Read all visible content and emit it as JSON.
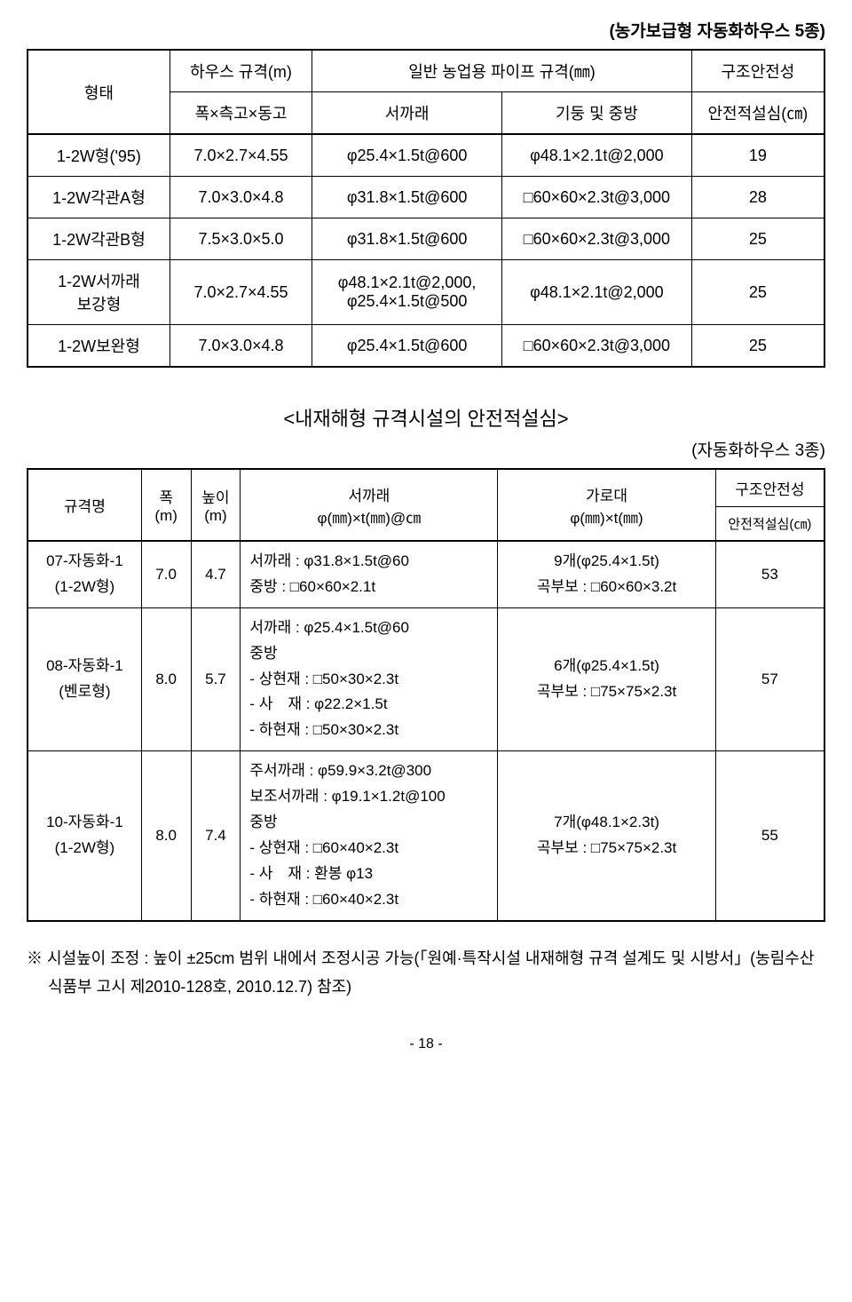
{
  "top_caption": "(농가보급형 자동화하우스 5종)",
  "table1": {
    "headers": {
      "type": "형태",
      "size_main": "하우스 규격(m)",
      "size_sub": "폭×측고×동고",
      "pipe_main": "일반 농업용 파이프 규격(㎜)",
      "pipe_sub1": "서까래",
      "pipe_sub2": "기둥 및 중방",
      "safety_main": "구조안전성",
      "safety_sub": "안전적설심(㎝)"
    },
    "rows": [
      {
        "type": "1-2W형('95)",
        "size": "7.0×2.7×4.55",
        "rafter": "φ25.4×1.5t@600",
        "col": "φ48.1×2.1t@2,000",
        "safety": "19"
      },
      {
        "type": "1-2W각관A형",
        "size": "7.0×3.0×4.8",
        "rafter": "φ31.8×1.5t@600",
        "col": "□60×60×2.3t@3,000",
        "safety": "28"
      },
      {
        "type": "1-2W각관B형",
        "size": "7.5×3.0×5.0",
        "rafter": "φ31.8×1.5t@600",
        "col": "□60×60×2.3t@3,000",
        "safety": "25"
      },
      {
        "type": "1-2W서까래\n보강형",
        "size": "7.0×2.7×4.55",
        "rafter": "φ48.1×2.1t@2,000,\nφ25.4×1.5t@500",
        "col": "φ48.1×2.1t@2,000",
        "safety": "25"
      },
      {
        "type": "1-2W보완형",
        "size": "7.0×3.0×4.8",
        "rafter": "φ25.4×1.5t@600",
        "col": "□60×60×2.3t@3,000",
        "safety": "25"
      }
    ]
  },
  "subtitle": "<내재해형 규격시설의 안전적설심>",
  "subtitle_right": "(자동화하우스 3종)",
  "table2": {
    "headers": {
      "name": "규격명",
      "width": "폭\n(m)",
      "height": "높이\n(m)",
      "rafter": "서까래\nφ(㎜)×t(㎜)@㎝",
      "cross": "가로대\nφ(㎜)×t(㎜)",
      "safety_main": "구조안전성",
      "safety_sub": "안전적설심(㎝)"
    },
    "rows": [
      {
        "name": "07-자동화-1\n(1-2W형)",
        "w": "7.0",
        "h": "4.7",
        "rafter": "서까래 : φ31.8×1.5t@60\n중방 : □60×60×2.1t",
        "cross": "9개(φ25.4×1.5t)\n곡부보 : □60×60×3.2t",
        "safety": "53"
      },
      {
        "name": "08-자동화-1\n(벤로형)",
        "w": "8.0",
        "h": "5.7",
        "rafter": "서까래 : φ25.4×1.5t@60\n중방\n- 상현재 : □50×30×2.3t\n- 사　재 : φ22.2×1.5t\n- 하현재 : □50×30×2.3t",
        "cross": "6개(φ25.4×1.5t)\n곡부보 : □75×75×2.3t",
        "safety": "57"
      },
      {
        "name": "10-자동화-1\n(1-2W형)",
        "w": "8.0",
        "h": "7.4",
        "rafter": "주서까래 : φ59.9×3.2t@300\n보조서까래 : φ19.1×1.2t@100\n중방\n- 상현재 : □60×40×2.3t\n- 사　재 : 환봉 φ13\n- 하현재 : □60×40×2.3t",
        "cross": "7개(φ48.1×2.3t)\n곡부보 : □75×75×2.3t",
        "safety": "55"
      }
    ]
  },
  "footnote": "※ 시설높이 조정 : 높이 ±25cm 범위 내에서 조정시공 가능(「원예·특작시설 내재해형 규격 설계도 및 시방서」(농림수산식품부 고시 제2010-128호, 2010.12.7) 참조)",
  "page_number": "- 18 -"
}
